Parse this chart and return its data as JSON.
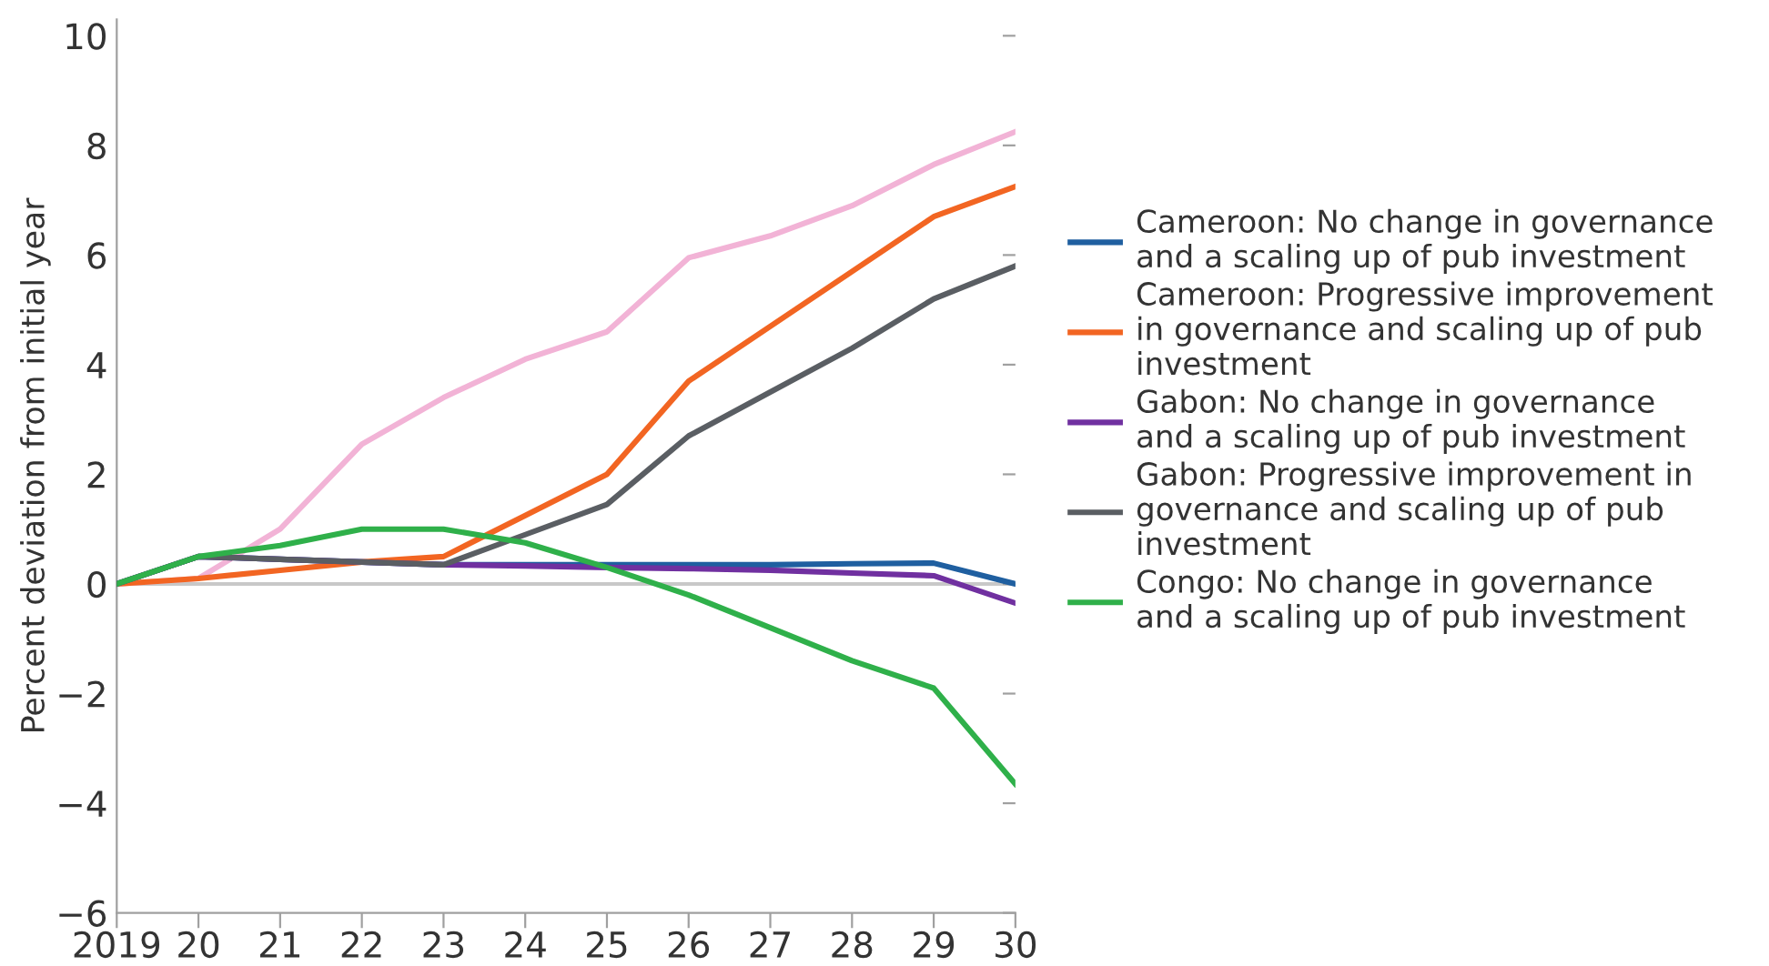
{
  "chart_data": {
    "type": "line",
    "ylabel": "Percent deviation from initial year",
    "x": [
      2019,
      2020,
      2021,
      2022,
      2023,
      2024,
      2025,
      2026,
      2027,
      2028,
      2029,
      2030
    ],
    "series": [
      {
        "color": "#f2b3d6",
        "values": [
          0,
          0.1,
          1.0,
          2.55,
          3.4,
          4.1,
          4.6,
          5.95,
          6.35,
          6.9,
          7.65,
          8.25
        ]
      },
      {
        "name": "Cameroon: No change in governance\nand a scaling up of pub investment",
        "color": "#1f5fa0",
        "values": [
          0,
          0.5,
          0.45,
          0.4,
          0.35,
          0.35,
          0.35,
          0.35,
          0.35,
          0.37,
          0.38,
          0.0
        ]
      },
      {
        "name": "Cameroon: Progressive improvement\nin governance and scaling up of pub\ninvestment",
        "color": "#f26522",
        "values": [
          0,
          0.1,
          0.25,
          0.4,
          0.5,
          1.25,
          2.0,
          3.7,
          4.7,
          5.7,
          6.7,
          7.25
        ]
      },
      {
        "name": "Gabon: No change in governance\nand a scaling up of pub investment",
        "color": "#7030a0",
        "values": [
          0,
          0.5,
          0.45,
          0.4,
          0.35,
          0.33,
          0.3,
          0.28,
          0.25,
          0.2,
          0.15,
          -0.35
        ]
      },
      {
        "name": "Gabon: Progressive improvement in\ngovernance and scaling up of pub\ninvestment",
        "color": "#5a5e63",
        "values": [
          0,
          0.5,
          0.45,
          0.4,
          0.35,
          0.9,
          1.45,
          2.7,
          3.5,
          4.3,
          5.2,
          5.8
        ]
      },
      {
        "name": "Congo: No change in governance\nand a scaling up of pub investment",
        "color": "#2fb04a",
        "values": [
          0,
          0.5,
          0.7,
          1.0,
          1.0,
          0.75,
          0.3,
          -0.2,
          -0.8,
          -1.4,
          -1.9,
          -3.65
        ]
      }
    ],
    "xlim": [
      2019,
      2030
    ],
    "xticks": [
      2019,
      {
        "value": 2020,
        "label": "20"
      },
      {
        "value": 2021,
        "label": "21"
      },
      {
        "value": 2022,
        "label": "22"
      },
      {
        "value": 2023,
        "label": "23"
      },
      {
        "value": 2024,
        "label": "24"
      },
      {
        "value": 2025,
        "label": "25"
      },
      {
        "value": 2026,
        "label": "26"
      },
      {
        "value": 2027,
        "label": "27"
      },
      {
        "value": 2028,
        "label": "28"
      },
      {
        "value": 2029,
        "label": "29"
      },
      {
        "value": 2030,
        "label": "30"
      }
    ],
    "ylim": [
      -6,
      10.3
    ],
    "yticks": [
      -6,
      -4,
      -2,
      0,
      2,
      4,
      6,
      8,
      10
    ],
    "ref_lines": [
      {
        "axis": "y",
        "value": 0,
        "color": "#c8c8c8"
      }
    ],
    "grid": false,
    "legend": "right",
    "marker": "none",
    "line_style": "solid"
  }
}
